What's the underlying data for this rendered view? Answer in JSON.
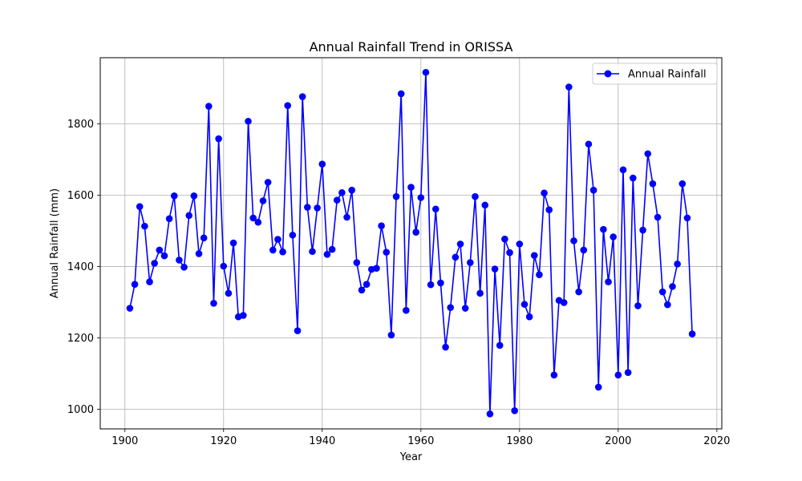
{
  "chart_data": {
    "type": "line",
    "title": "Annual Rainfall Trend in ORISSA",
    "xlabel": "Year",
    "ylabel": "Annual Rainfall (mm)",
    "xlim": [
      1895,
      2021
    ],
    "ylim": [
      945,
      1985
    ],
    "xticks": [
      1900,
      1920,
      1940,
      1960,
      1980,
      2000,
      2020
    ],
    "yticks": [
      1000,
      1200,
      1400,
      1600,
      1800
    ],
    "grid": true,
    "legend_position": "top-right",
    "series": [
      {
        "name": "Annual Rainfall",
        "color": "#0000ff",
        "marker": "circle",
        "x": [
          1901,
          1902,
          1903,
          1904,
          1905,
          1906,
          1907,
          1908,
          1909,
          1910,
          1911,
          1912,
          1913,
          1914,
          1915,
          1916,
          1917,
          1918,
          1919,
          1920,
          1921,
          1922,
          1923,
          1924,
          1925,
          1926,
          1927,
          1928,
          1929,
          1930,
          1931,
          1932,
          1933,
          1934,
          1935,
          1936,
          1937,
          1938,
          1939,
          1940,
          1941,
          1942,
          1943,
          1944,
          1945,
          1946,
          1947,
          1948,
          1949,
          1950,
          1951,
          1952,
          1953,
          1954,
          1955,
          1956,
          1957,
          1958,
          1959,
          1960,
          1961,
          1962,
          1963,
          1964,
          1965,
          1966,
          1967,
          1968,
          1969,
          1970,
          1971,
          1972,
          1973,
          1974,
          1975,
          1976,
          1977,
          1978,
          1979,
          1980,
          1981,
          1982,
          1983,
          1984,
          1985,
          1986,
          1987,
          1988,
          1989,
          1990,
          1991,
          1992,
          1993,
          1994,
          1995,
          1996,
          1997,
          1998,
          1999,
          2000,
          2001,
          2002,
          2003,
          2004,
          2005,
          2006,
          2007,
          2008,
          2009,
          2010,
          2011,
          2012,
          2013,
          2014,
          2015
        ],
        "values": [
          1283,
          1350,
          1568,
          1513,
          1357,
          1409,
          1446,
          1430,
          1534,
          1598,
          1418,
          1398,
          1543,
          1598,
          1436,
          1480,
          1849,
          1297,
          1758,
          1401,
          1325,
          1466,
          1259,
          1263,
          1807,
          1536,
          1524,
          1584,
          1636,
          1446,
          1476,
          1441,
          1851,
          1488,
          1220,
          1876,
          1566,
          1442,
          1564,
          1687,
          1434,
          1448,
          1586,
          1607,
          1538,
          1614,
          1411,
          1334,
          1350,
          1392,
          1395,
          1514,
          1440,
          1208,
          1596,
          1884,
          1277,
          1622,
          1496,
          1593,
          1944,
          1349,
          1561,
          1354,
          1174,
          1285,
          1426,
          1463,
          1283,
          1411,
          1596,
          1325,
          1572,
          987,
          1393,
          1179,
          1477,
          1439,
          996,
          1463,
          1294,
          1259,
          1431,
          1377,
          1606,
          1559,
          1096,
          1305,
          1299,
          1903,
          1472,
          1329,
          1446,
          1743,
          1614,
          1062,
          1504,
          1357,
          1483,
          1096,
          1671,
          1103,
          1648,
          1290,
          1502,
          1716,
          1632,
          1538,
          1329,
          1293,
          1344,
          1407,
          1632,
          1536,
          1211
        ]
      }
    ]
  }
}
